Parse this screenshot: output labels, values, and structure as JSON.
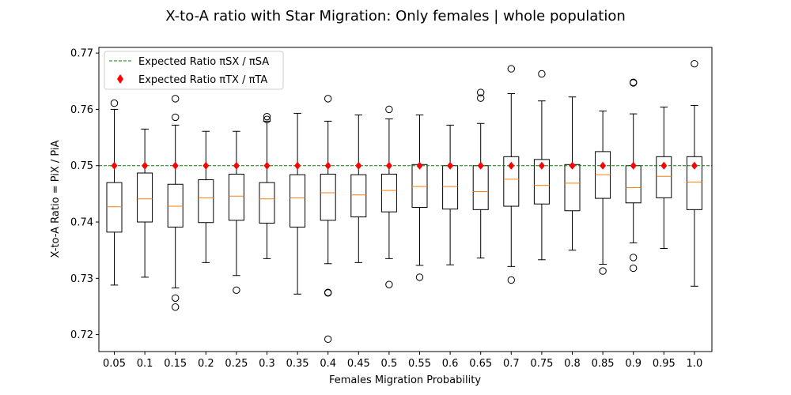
{
  "chart_data": {
    "type": "boxplot",
    "title": "X-to-A ratio with Star Migration: Only females | whole population",
    "xlabel": "Females Migration Probability",
    "ylabel": "X-to-A Ratio = PiX / PiA",
    "ylim": [
      0.717,
      0.771
    ],
    "yticks": [
      "0.72",
      "0.73",
      "0.74",
      "0.75",
      "0.76",
      "0.77"
    ],
    "categories": [
      "0.05",
      "0.1",
      "0.15",
      "0.2",
      "0.25",
      "0.3",
      "0.35",
      "0.4",
      "0.45",
      "0.5",
      "0.55",
      "0.6",
      "0.65",
      "0.7",
      "0.75",
      "0.8",
      "0.85",
      "0.9",
      "0.95",
      "1.0"
    ],
    "boxes": [
      {
        "whislo": 0.7288,
        "q1": 0.7382,
        "med": 0.7427,
        "q3": 0.747,
        "whishi": 0.76,
        "fliers": [
          0.7611
        ]
      },
      {
        "whislo": 0.7302,
        "q1": 0.74,
        "med": 0.7441,
        "q3": 0.7487,
        "whishi": 0.7565,
        "fliers": []
      },
      {
        "whislo": 0.7283,
        "q1": 0.7391,
        "med": 0.7428,
        "q3": 0.7467,
        "whishi": 0.7572,
        "fliers": [
          0.7619,
          0.7586,
          0.7265,
          0.7249
        ]
      },
      {
        "whislo": 0.7328,
        "q1": 0.7399,
        "med": 0.7443,
        "q3": 0.7475,
        "whishi": 0.7561,
        "fliers": []
      },
      {
        "whislo": 0.7305,
        "q1": 0.7403,
        "med": 0.7446,
        "q3": 0.7485,
        "whishi": 0.7561,
        "fliers": [
          0.7279
        ]
      },
      {
        "whislo": 0.7335,
        "q1": 0.7398,
        "med": 0.7441,
        "q3": 0.747,
        "whishi": 0.7579,
        "fliers": [
          0.7587,
          0.7582
        ]
      },
      {
        "whislo": 0.7272,
        "q1": 0.7391,
        "med": 0.7443,
        "q3": 0.7484,
        "whishi": 0.7593,
        "fliers": []
      },
      {
        "whislo": 0.7326,
        "q1": 0.7403,
        "med": 0.7452,
        "q3": 0.7485,
        "whishi": 0.7579,
        "fliers": [
          0.7619,
          0.7275,
          0.7274,
          0.7192
        ]
      },
      {
        "whislo": 0.7328,
        "q1": 0.7409,
        "med": 0.7448,
        "q3": 0.7484,
        "whishi": 0.759,
        "fliers": []
      },
      {
        "whislo": 0.7335,
        "q1": 0.7418,
        "med": 0.7456,
        "q3": 0.7485,
        "whishi": 0.7583,
        "fliers": [
          0.76,
          0.7289
        ]
      },
      {
        "whislo": 0.7323,
        "q1": 0.7426,
        "med": 0.7463,
        "q3": 0.7502,
        "whishi": 0.759,
        "fliers": [
          0.7302
        ]
      },
      {
        "whislo": 0.7324,
        "q1": 0.7423,
        "med": 0.7463,
        "q3": 0.75,
        "whishi": 0.7572,
        "fliers": []
      },
      {
        "whislo": 0.7336,
        "q1": 0.7422,
        "med": 0.7454,
        "q3": 0.75,
        "whishi": 0.7575,
        "fliers": [
          0.763,
          0.762
        ]
      },
      {
        "whislo": 0.7321,
        "q1": 0.7428,
        "med": 0.7476,
        "q3": 0.7516,
        "whishi": 0.7628,
        "fliers": [
          0.7672,
          0.7297
        ]
      },
      {
        "whislo": 0.7333,
        "q1": 0.7432,
        "med": 0.7465,
        "q3": 0.7511,
        "whishi": 0.7615,
        "fliers": [
          0.7663
        ]
      },
      {
        "whislo": 0.735,
        "q1": 0.742,
        "med": 0.7469,
        "q3": 0.7502,
        "whishi": 0.7622,
        "fliers": []
      },
      {
        "whislo": 0.7325,
        "q1": 0.7442,
        "med": 0.7484,
        "q3": 0.7525,
        "whishi": 0.7597,
        "fliers": [
          0.7313
        ]
      },
      {
        "whislo": 0.7363,
        "q1": 0.7434,
        "med": 0.7461,
        "q3": 0.75,
        "whishi": 0.7592,
        "fliers": [
          0.7648,
          0.7647,
          0.7337,
          0.7318
        ]
      },
      {
        "whislo": 0.7353,
        "q1": 0.7443,
        "med": 0.7481,
        "q3": 0.7516,
        "whishi": 0.7604,
        "fliers": []
      },
      {
        "whislo": 0.7286,
        "q1": 0.7422,
        "med": 0.7471,
        "q3": 0.7516,
        "whishi": 0.7607,
        "fliers": [
          0.7681
        ]
      }
    ],
    "expected_line": {
      "name": "Expected Ratio πSX / πSA",
      "value": 0.75,
      "color": "#008000",
      "style": "dashed"
    },
    "expected_points": {
      "name": "Expected Ratio πTX / πTA",
      "value": 0.75,
      "color": "#ff0000",
      "marker": "diamond"
    },
    "legend_position": "top-left",
    "box_color": "#000000",
    "median_color": "#ff7f0e",
    "grid": false
  }
}
